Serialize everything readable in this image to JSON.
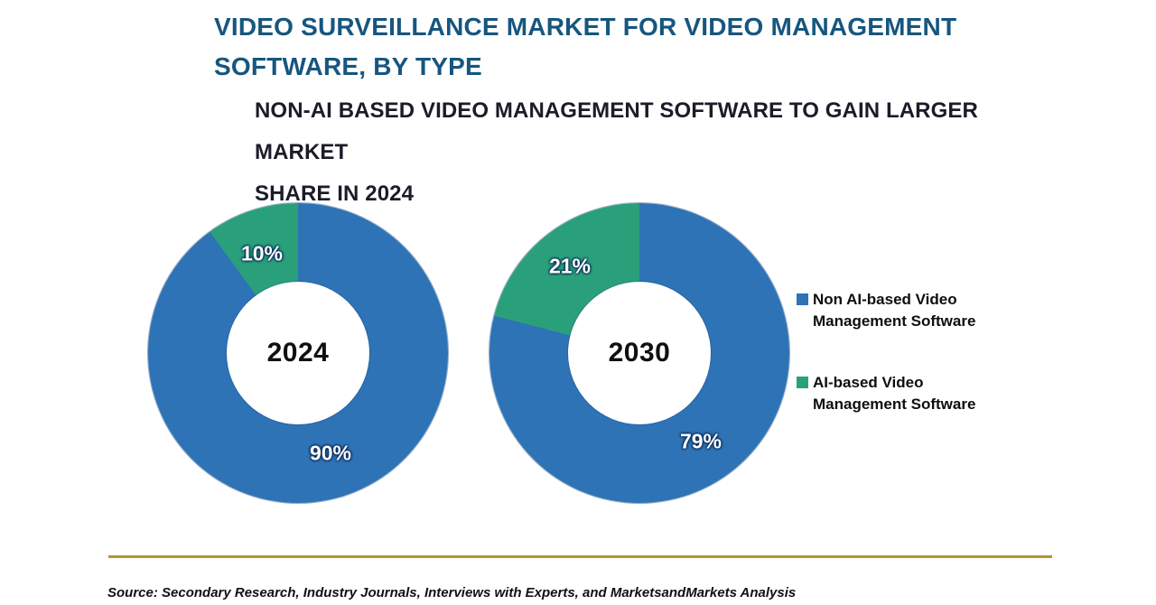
{
  "header": {
    "title_line1": "VIDEO SURVEILLANCE MARKET FOR VIDEO MANAGEMENT",
    "title_line2": "SOFTWARE, BY TYPE",
    "subtitle_line1": "NON-AI BASED VIDEO MANAGEMENT SOFTWARE TO GAIN LARGER MARKET",
    "subtitle_line2": "SHARE IN 2024",
    "title_color": "#16567f"
  },
  "chart_data": {
    "type": "pie",
    "donut": true,
    "title": "VIDEO SURVEILLANCE MARKET FOR VIDEO MANAGEMENT SOFTWARE, BY TYPE",
    "subtitle": "NON-AI BASED VIDEO MANAGEMENT SOFTWARE TO GAIN LARGER MARKET SHARE IN 2024",
    "legend_position": "right",
    "charts": [
      {
        "center_label": "2024",
        "slices": [
          {
            "name": "Non AI-based Video Management Software",
            "value": 90,
            "label": "90%",
            "color": "#2e73b6"
          },
          {
            "name": "AI-based Video Management Software",
            "value": 10,
            "label": "10%",
            "color": "#2aa07a"
          }
        ]
      },
      {
        "center_label": "2030",
        "slices": [
          {
            "name": "Non AI-based Video Management Software",
            "value": 79,
            "label": "79%",
            "color": "#2e73b6"
          },
          {
            "name": "AI-based Video Management Software",
            "value": 21,
            "label": "21%",
            "color": "#2aa07a"
          }
        ]
      }
    ],
    "legend": [
      {
        "label": "Non AI-based Video Management Software",
        "color": "#2e73b6"
      },
      {
        "label": "AI-based Video Management Software",
        "color": "#2aa07a"
      }
    ]
  },
  "footer": {
    "source": "Source: Secondary Research, Industry Journals, Interviews with Experts, and MarketsandMarkets Analysis",
    "divider_color": "#b6962d"
  }
}
